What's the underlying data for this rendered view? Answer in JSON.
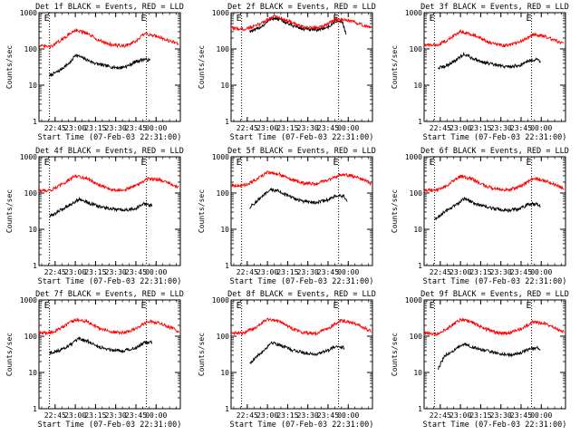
{
  "chart_data": {
    "type": "line",
    "ylog": true,
    "ylim": [
      1,
      1000
    ],
    "xlim_hours": [
      22.55,
      24.3
    ],
    "common": {
      "ylabel": "Counts/sec",
      "xlabel": "Start Time (07-Feb-03 22:31:00)",
      "xticks": [
        "22:45",
        "23:00",
        "23:15",
        "23:30",
        "23:45",
        "00:00"
      ],
      "yticks": [
        "1",
        "10",
        "100",
        "1000"
      ],
      "markers": [
        "E",
        "E"
      ],
      "colors": {
        "events": "#000000",
        "lld": "#ff0000"
      }
    },
    "panels": [
      {
        "title": "Det 1f BLACK = Events, RED = LLD",
        "marker_x": [
          22.68,
          23.88
        ],
        "series": [
          {
            "name": "Events",
            "color": "#000000",
            "x": [
              22.68,
              22.8,
              22.95,
              23.0,
              23.1,
              23.25,
              23.35,
              23.45,
              23.55,
              23.65,
              23.75,
              23.85,
              23.93
            ],
            "y": [
              18,
              25,
              45,
              70,
              55,
              40,
              35,
              32,
              30,
              34,
              45,
              52,
              48
            ]
          },
          {
            "name": "LLD",
            "color": "#ff0000",
            "x": [
              22.55,
              22.7,
              22.85,
              23.0,
              23.15,
              23.3,
              23.45,
              23.6,
              23.75,
              23.85,
              24.0,
              24.15,
              24.28
            ],
            "y": [
              120,
              115,
              190,
              340,
              260,
              170,
              130,
              120,
              160,
              260,
              230,
              170,
              140
            ]
          }
        ]
      },
      {
        "title": "Det 2f BLACK = Events, RED = LLD",
        "marker_x": [
          22.68,
          23.88
        ],
        "series": [
          {
            "name": "Events",
            "color": "#000000",
            "x": [
              22.78,
              22.85,
              22.95,
              23.05,
              23.15,
              23.3,
              23.45,
              23.6,
              23.75,
              23.85,
              23.93,
              23.97
            ],
            "y": [
              310,
              330,
              450,
              700,
              650,
              450,
              350,
              330,
              400,
              580,
              560,
              260
            ]
          },
          {
            "name": "LLD",
            "color": "#ff0000",
            "x": [
              22.55,
              22.7,
              22.85,
              23.0,
              23.1,
              23.25,
              23.4,
              23.55,
              23.7,
              23.85,
              24.0,
              24.15,
              24.28
            ],
            "y": [
              380,
              350,
              420,
              650,
              800,
              600,
              420,
              380,
              440,
              650,
              600,
              480,
              380
            ]
          }
        ]
      },
      {
        "title": "Det 3f BLACK = Events, RED = LLD",
        "marker_x": [
          22.68,
          23.88
        ],
        "series": [
          {
            "name": "Events",
            "color": "#000000",
            "x": [
              22.72,
              22.8,
              22.95,
              23.05,
              23.15,
              23.3,
              23.45,
              23.6,
              23.75,
              23.85,
              23.95,
              23.99
            ],
            "y": [
              30,
              32,
              50,
              72,
              55,
              42,
              35,
              32,
              36,
              48,
              52,
              45
            ]
          },
          {
            "name": "LLD",
            "color": "#ff0000",
            "x": [
              22.55,
              22.7,
              22.85,
              23.0,
              23.15,
              23.3,
              23.45,
              23.6,
              23.75,
              23.9,
              24.05,
              24.2,
              24.28
            ],
            "y": [
              130,
              125,
              180,
              310,
              250,
              170,
              130,
              125,
              160,
              250,
              220,
              160,
              140
            ]
          }
        ]
      },
      {
        "title": "Det 4f BLACK = Events, RED = LLD",
        "marker_x": [
          22.68,
          23.88
        ],
        "series": [
          {
            "name": "Events",
            "color": "#000000",
            "x": [
              22.68,
              22.8,
              22.95,
              23.05,
              23.15,
              23.3,
              23.45,
              23.6,
              23.75,
              23.85,
              23.95
            ],
            "y": [
              22,
              32,
              50,
              68,
              55,
              42,
              36,
              33,
              38,
              50,
              45
            ]
          },
          {
            "name": "LLD",
            "color": "#ff0000",
            "x": [
              22.55,
              22.7,
              22.85,
              23.0,
              23.15,
              23.3,
              23.45,
              23.6,
              23.75,
              23.9,
              24.05,
              24.2,
              24.28
            ],
            "y": [
              115,
              120,
              180,
              300,
              250,
              160,
              125,
              120,
              160,
              250,
              230,
              170,
              140
            ]
          }
        ]
      },
      {
        "title": "Det 5f BLACK = Events, RED = LLD",
        "marker_x": [
          22.68,
          23.88
        ],
        "series": [
          {
            "name": "Events",
            "color": "#000000",
            "x": [
              22.78,
              22.85,
              22.95,
              23.05,
              23.15,
              23.3,
              23.45,
              23.6,
              23.75,
              23.85,
              23.95,
              23.99
            ],
            "y": [
              40,
              55,
              85,
              125,
              110,
              75,
              58,
              55,
              65,
              85,
              80,
              55
            ]
          },
          {
            "name": "LLD",
            "color": "#ff0000",
            "x": [
              22.55,
              22.7,
              22.85,
              23.0,
              23.15,
              23.3,
              23.45,
              23.6,
              23.75,
              23.9,
              24.05,
              24.2,
              24.28
            ],
            "y": [
              165,
              160,
              220,
              380,
              330,
              230,
              185,
              180,
              230,
              320,
              300,
              230,
              180
            ]
          }
        ]
      },
      {
        "title": "Det 6f BLACK = Events, RED = LLD",
        "marker_x": [
          22.68,
          23.88
        ],
        "series": [
          {
            "name": "Events",
            "color": "#000000",
            "x": [
              22.68,
              22.8,
              22.95,
              23.05,
              23.15,
              23.3,
              23.45,
              23.6,
              23.75,
              23.85,
              23.95,
              23.99
            ],
            "y": [
              18,
              30,
              48,
              70,
              55,
              42,
              36,
              33,
              38,
              50,
              50,
              42
            ]
          },
          {
            "name": "LLD",
            "color": "#ff0000",
            "x": [
              22.55,
              22.7,
              22.85,
              23.0,
              23.15,
              23.3,
              23.45,
              23.6,
              23.75,
              23.9,
              24.05,
              24.2,
              24.28
            ],
            "y": [
              120,
              118,
              170,
              290,
              240,
              160,
              125,
              120,
              160,
              250,
              220,
              160,
              135
            ]
          }
        ]
      },
      {
        "title": "Det 7f BLACK = Events, RED = LLD",
        "marker_x": [
          22.68,
          23.88
        ],
        "series": [
          {
            "name": "Events",
            "color": "#000000",
            "x": [
              22.68,
              22.8,
              22.95,
              23.05,
              23.15,
              23.3,
              23.45,
              23.6,
              23.75,
              23.85,
              23.95
            ],
            "y": [
              35,
              40,
              60,
              85,
              72,
              50,
              42,
              40,
              48,
              65,
              70
            ]
          },
          {
            "name": "LLD",
            "color": "#ff0000",
            "x": [
              22.55,
              22.7,
              22.85,
              23.0,
              23.15,
              23.3,
              23.45,
              23.6,
              23.75,
              23.9,
              24.05,
              24.2,
              24.28
            ],
            "y": [
              120,
              125,
              180,
              290,
              250,
              165,
              130,
              125,
              160,
              260,
              230,
              165,
              135
            ]
          }
        ]
      },
      {
        "title": "Det 8f BLACK = Events, RED = LLD",
        "marker_x": [
          22.68,
          23.88
        ],
        "series": [
          {
            "name": "Events",
            "color": "#000000",
            "x": [
              22.78,
              22.85,
              22.95,
              23.05,
              23.15,
              23.3,
              23.45,
              23.6,
              23.75,
              23.85,
              23.95
            ],
            "y": [
              18,
              25,
              40,
              68,
              58,
              42,
              35,
              32,
              40,
              55,
              48
            ]
          },
          {
            "name": "LLD",
            "color": "#ff0000",
            "x": [
              22.55,
              22.7,
              22.85,
              23.0,
              23.15,
              23.3,
              23.45,
              23.6,
              23.75,
              23.9,
              24.05,
              24.2,
              24.28
            ],
            "y": [
              125,
              120,
              175,
              300,
              260,
              165,
              125,
              120,
              165,
              270,
              240,
              170,
              135
            ]
          }
        ]
      },
      {
        "title": "Det 9f BLACK = Events, RED = LLD",
        "marker_x": [
          22.68,
          23.88
        ],
        "series": [
          {
            "name": "Events",
            "color": "#000000",
            "x": [
              22.72,
              22.8,
              22.95,
              23.05,
              23.15,
              23.3,
              23.45,
              23.6,
              23.75,
              23.85,
              23.95,
              23.99
            ],
            "y": [
              12,
              28,
              45,
              62,
              50,
              40,
              34,
              30,
              35,
              45,
              48,
              40
            ]
          },
          {
            "name": "LLD",
            "color": "#ff0000",
            "x": [
              22.55,
              22.7,
              22.85,
              23.0,
              23.15,
              23.3,
              23.45,
              23.6,
              23.75,
              23.9,
              24.05,
              24.2,
              24.28
            ],
            "y": [
              120,
              115,
              170,
              290,
              240,
              160,
              125,
              120,
              160,
              250,
              220,
              160,
              130
            ]
          }
        ]
      }
    ]
  }
}
